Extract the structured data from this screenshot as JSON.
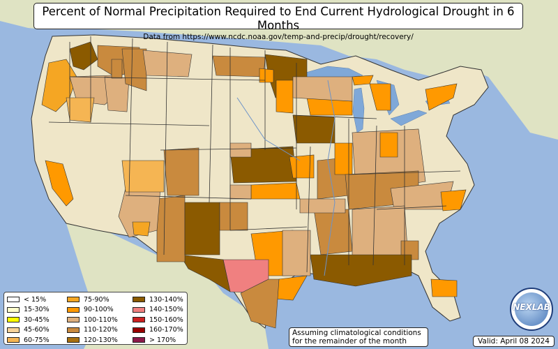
{
  "title": "Percent of Normal Precipitation Required to End Current Hydrological Drought in 6 Months",
  "subtitle": "Data from https://www.ncdc.noaa.gov/temp-and-precip/drought/recovery/",
  "legend": [
    {
      "label": "< 15%",
      "color": "#ffffff"
    },
    {
      "label": "15-30%",
      "color": "#ffffcc"
    },
    {
      "label": "30-45%",
      "color": "#ffff00"
    },
    {
      "label": "45-60%",
      "color": "#f7d399"
    },
    {
      "label": "60-75%",
      "color": "#f5b553"
    },
    {
      "label": "75-90%",
      "color": "#f5a623"
    },
    {
      "label": "90-100%",
      "color": "#ff9900"
    },
    {
      "label": "100-110%",
      "color": "#deb07e"
    },
    {
      "label": "110-120%",
      "color": "#c98a3e"
    },
    {
      "label": "120-130%",
      "color": "#a8700f"
    },
    {
      "label": "130-140%",
      "color": "#8b5a00"
    },
    {
      "label": "140-150%",
      "color": "#f08080"
    },
    {
      "label": "150-160%",
      "color": "#cc2222"
    },
    {
      "label": "160-170%",
      "color": "#990000"
    },
    {
      "label": "> 170%",
      "color": "#8b1a4a"
    }
  ],
  "note": "Assuming climatological conditions for the remainder of the month",
  "valid": "Valid: April 08 2024",
  "logo_text": "NEXLAB",
  "colors": {
    "ocean": "#9ab8e0",
    "land_us": "#efe6c8",
    "land_other": "#dfe3c3",
    "water": "#7fa8d8",
    "border": "#333333"
  }
}
